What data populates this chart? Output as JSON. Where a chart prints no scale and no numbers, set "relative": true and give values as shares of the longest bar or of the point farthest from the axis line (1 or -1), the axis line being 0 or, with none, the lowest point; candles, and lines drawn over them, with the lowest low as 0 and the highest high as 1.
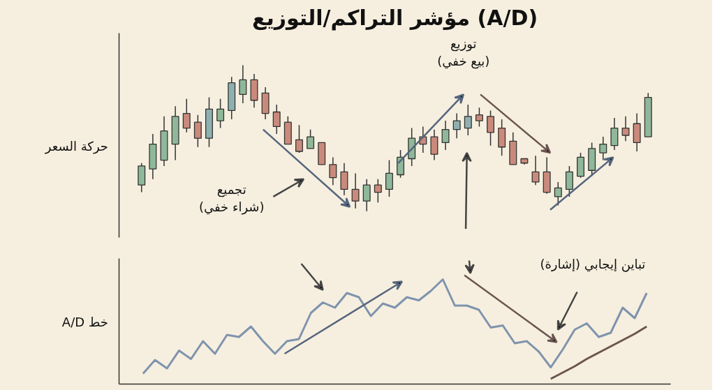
{
  "chart_data": [
    {
      "type": "candlestick",
      "title": "مؤشر التراكم/التوزيع (A/D)",
      "ylabel": "حركة السعر",
      "relative": true,
      "tick_labels": false,
      "categories": [
        null,
        null,
        null,
        null,
        null,
        null,
        null,
        null,
        null,
        null,
        null,
        null,
        null,
        null,
        null,
        null,
        null,
        null,
        null,
        null,
        null,
        null,
        null,
        null,
        null,
        null,
        null,
        null,
        null,
        null,
        null,
        null,
        null,
        null,
        null,
        null,
        null,
        null,
        null,
        null,
        null,
        null,
        null,
        null,
        null,
        null
      ],
      "ohlc": [
        [
          0.18,
          0.33,
          0.13,
          0.31
        ],
        [
          0.29,
          0.53,
          0.22,
          0.46
        ],
        [
          0.35,
          0.65,
          0.31,
          0.55
        ],
        [
          0.46,
          0.72,
          0.35,
          0.65
        ],
        [
          0.67,
          0.77,
          0.54,
          0.57
        ],
        [
          0.61,
          0.66,
          0.44,
          0.5
        ],
        [
          0.5,
          0.78,
          0.44,
          0.7
        ],
        [
          0.62,
          0.77,
          0.57,
          0.7
        ],
        [
          0.69,
          0.92,
          0.63,
          0.88
        ],
        [
          0.8,
          1.0,
          0.74,
          0.9
        ],
        [
          0.9,
          0.94,
          0.71,
          0.76
        ],
        [
          0.81,
          0.85,
          0.63,
          0.67
        ],
        [
          0.68,
          0.73,
          0.53,
          0.58
        ],
        [
          0.61,
          0.65,
          0.46,
          0.46
        ],
        [
          0.49,
          0.59,
          0.4,
          0.41
        ],
        [
          0.43,
          0.56,
          0.43,
          0.51
        ],
        [
          0.47,
          0.47,
          0.32,
          0.32
        ],
        [
          0.32,
          0.37,
          0.18,
          0.23
        ],
        [
          0.27,
          0.33,
          0.11,
          0.15
        ],
        [
          0.15,
          0.26,
          0.02,
          0.07
        ],
        [
          0.07,
          0.22,
          0.0,
          0.18
        ],
        [
          0.18,
          0.22,
          0.06,
          0.13
        ],
        [
          0.15,
          0.35,
          0.1,
          0.26
        ],
        [
          0.25,
          0.42,
          0.23,
          0.37
        ],
        [
          0.36,
          0.57,
          0.31,
          0.5
        ],
        [
          0.51,
          0.58,
          0.4,
          0.46
        ],
        [
          0.51,
          0.56,
          0.35,
          0.39
        ],
        [
          0.47,
          0.62,
          0.42,
          0.56
        ],
        [
          0.56,
          0.67,
          0.5,
          0.62
        ],
        [
          0.57,
          0.73,
          0.52,
          0.65
        ],
        [
          0.66,
          0.71,
          0.58,
          0.62
        ],
        [
          0.65,
          0.69,
          0.45,
          0.54
        ],
        [
          0.57,
          0.63,
          0.38,
          0.44
        ],
        [
          0.48,
          0.54,
          0.32,
          0.32
        ],
        [
          0.36,
          0.36,
          0.32,
          0.33
        ],
        [
          0.27,
          0.38,
          0.18,
          0.2
        ],
        [
          0.27,
          0.37,
          0.12,
          0.13
        ],
        [
          0.1,
          0.2,
          0.04,
          0.16
        ],
        [
          0.15,
          0.31,
          0.1,
          0.27
        ],
        [
          0.24,
          0.4,
          0.23,
          0.37
        ],
        [
          0.28,
          0.47,
          0.24,
          0.43
        ],
        [
          0.4,
          0.51,
          0.35,
          0.46
        ],
        [
          0.45,
          0.64,
          0.42,
          0.57
        ],
        [
          0.57,
          0.65,
          0.48,
          0.52
        ],
        [
          0.6,
          0.67,
          0.41,
          0.47
        ],
        [
          0.51,
          0.81,
          0.51,
          0.78
        ]
      ],
      "colors": [
        "#8fb89a",
        "#8fb89a",
        "#8fb89a",
        "#8fb89a",
        "#c98a7c",
        "#c98a7c",
        "#8fb0b0",
        "#8fb89a",
        "#8fb0b0",
        "#8fb89a",
        "#c98a7c",
        "#c98a7c",
        "#c98a7c",
        "#c98a7c",
        "#c98a7c",
        "#8fb89a",
        "#c98a7c",
        "#c98a7c",
        "#c98a7c",
        "#c98a7c",
        "#8fb89a",
        "#c98a7c",
        "#8fb89a",
        "#8fb89a",
        "#8fb89a",
        "#c98a7c",
        "#c98a7c",
        "#8fb89a",
        "#8fb0b0",
        "#8fb0b0",
        "#c98a7c",
        "#c98a7c",
        "#c98a7c",
        "#c98a7c",
        "#c98a7c",
        "#c98a7c",
        "#c98a7c",
        "#8fb89a",
        "#8fb89a",
        "#8fb89a",
        "#8fb89a",
        "#8fb89a",
        "#8fb89a",
        "#c98a7c",
        "#c98a7c",
        "#8fb89a"
      ],
      "annotations": [
        "توزيع\n(بيع خفي)",
        "تجميع\n(شراء خفي)"
      ]
    },
    {
      "type": "line",
      "ylabel": "خط A/D",
      "relative": true,
      "tick_labels": false,
      "categories": [
        null,
        null,
        null,
        null,
        null,
        null,
        null,
        null,
        null,
        null,
        null,
        null,
        null,
        null,
        null,
        null,
        null,
        null,
        null,
        null,
        null,
        null,
        null,
        null,
        null,
        null,
        null,
        null,
        null,
        null,
        null,
        null,
        null,
        null,
        null,
        null,
        null,
        null,
        null,
        null,
        null,
        null,
        null
      ],
      "series": [
        {
          "color": "#7f93ad",
          "values": [
            0.1,
            0.23,
            0.15,
            0.32,
            0.24,
            0.41,
            0.29,
            0.47,
            0.45,
            0.55,
            0.41,
            0.29,
            0.41,
            0.43,
            0.68,
            0.78,
            0.73,
            0.87,
            0.83,
            0.65,
            0.77,
            0.73,
            0.83,
            0.8,
            0.89,
            1.0,
            0.75,
            0.75,
            0.71,
            0.54,
            0.56,
            0.39,
            0.41,
            0.31,
            0.16,
            0.33,
            0.52,
            0.58,
            0.45,
            0.49,
            0.73,
            0.63,
            0.87
          ]
        },
        {
          "type": "line",
          "color": "#6b5550",
          "values": [
            null,
            null,
            null,
            null,
            null,
            null,
            null,
            null,
            null,
            null,
            null,
            null,
            null,
            null,
            null,
            null,
            null,
            null,
            null,
            null,
            null,
            null,
            null,
            null,
            null,
            null,
            null,
            null,
            null,
            null,
            null,
            null,
            null,
            null,
            0.05,
            0.11,
            0.17,
            0.24,
            0.3,
            0.36,
            0.42,
            0.48,
            0.55
          ]
        }
      ],
      "annotations": [
        "تباين إيجابي (إشارة)"
      ]
    }
  ]
}
